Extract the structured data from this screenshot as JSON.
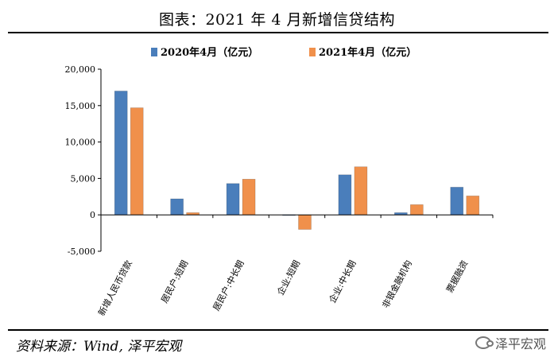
{
  "header": {
    "title": "图表：2021 年 4 月新增信贷结构"
  },
  "footer": {
    "source": "资料来源：Wind, 泽平宏观",
    "watermark": "泽平宏观",
    "watermark_icon": "wechat-icon"
  },
  "chart_data": {
    "type": "bar",
    "categories": [
      "新增人民币贷款",
      "居民户:短期",
      "居民户:中长期",
      "企业:短期",
      "企业:中长期",
      "非银金融机构",
      "票据融资"
    ],
    "series": [
      {
        "name": "2020年4月（亿元）",
        "color": "#4A7EBB",
        "values": [
          17000,
          2200,
          4300,
          -50,
          5500,
          300,
          3800
        ]
      },
      {
        "name": "2021年4月（亿元）",
        "color": "#F0904B",
        "values": [
          14700,
          300,
          4900,
          -2000,
          6600,
          1400,
          2600
        ]
      }
    ],
    "yticks": [
      "20,000",
      "15,000",
      "10,000",
      "5,000",
      "0",
      "-5,000"
    ],
    "ylim": [
      -5000,
      20000
    ],
    "legend": "top",
    "grid": false,
    "xlabel": "",
    "ylabel": ""
  }
}
